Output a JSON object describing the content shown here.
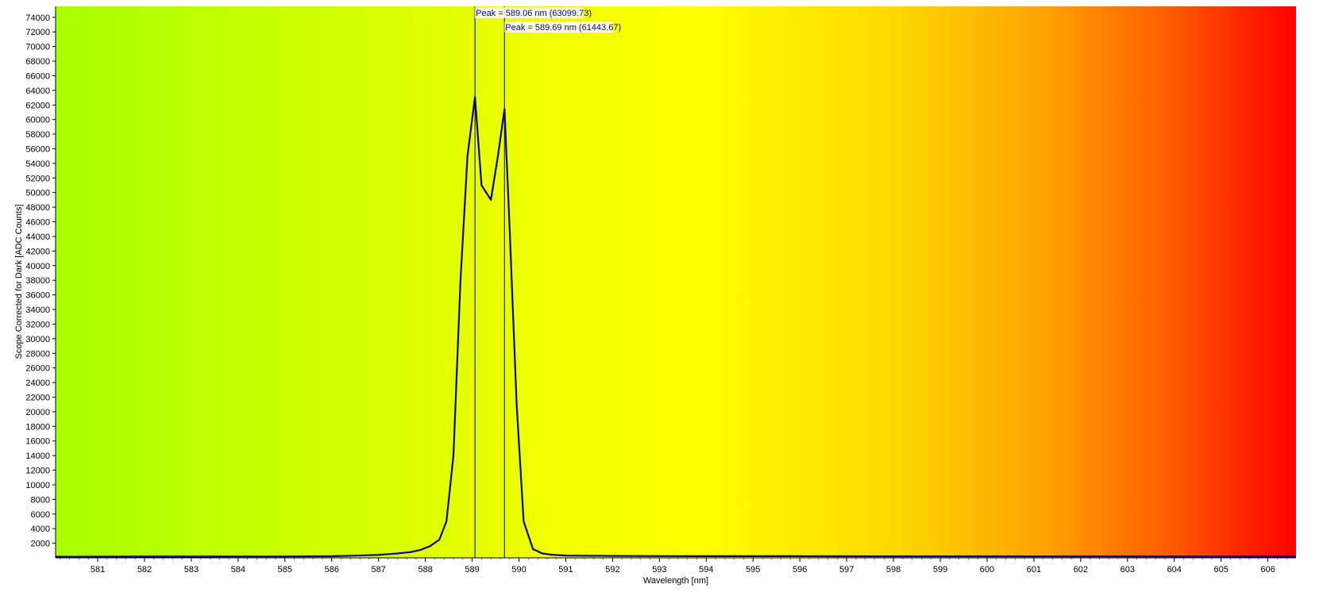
{
  "chart_data": {
    "type": "line",
    "xlabel": "Wavelength [nm]",
    "ylabel": "Scope Corrected for Dark [ADC Counts]",
    "xlim": [
      580.1,
      606.6
    ],
    "ylim": [
      0,
      75500
    ],
    "x_ticks": [
      581,
      582,
      583,
      584,
      585,
      586,
      587,
      588,
      589,
      590,
      591,
      592,
      593,
      594,
      595,
      596,
      597,
      598,
      599,
      600,
      601,
      602,
      603,
      604,
      605,
      606
    ],
    "y_ticks": [
      2000,
      4000,
      6000,
      8000,
      10000,
      12000,
      14000,
      16000,
      18000,
      20000,
      22000,
      24000,
      26000,
      28000,
      30000,
      32000,
      34000,
      36000,
      38000,
      40000,
      42000,
      44000,
      46000,
      48000,
      50000,
      52000,
      54000,
      56000,
      58000,
      60000,
      62000,
      64000,
      66000,
      68000,
      70000,
      72000,
      74000
    ],
    "grid": false,
    "legend": "none",
    "background": "spectral gradient",
    "background_colors": [
      "#a8ff00",
      "#ccff00",
      "#ffff00",
      "#ffd700",
      "#ff9a00",
      "#ff3a00",
      "#ff0000"
    ],
    "line_color": "#0a0a8a",
    "series": [
      {
        "x": [
          580.1,
          580.5,
          581.0,
          582.0,
          583.0,
          584.0,
          585.0,
          586.0,
          586.5,
          587.0,
          587.4,
          587.7,
          587.9,
          588.1,
          588.3,
          588.45,
          588.6,
          588.75,
          588.9,
          589.06,
          589.2,
          589.4,
          589.55,
          589.69,
          589.8,
          589.95,
          590.1,
          590.3,
          590.5,
          590.7,
          591.0,
          592.0,
          593.0,
          594.0,
          595.0,
          596.0,
          597.0,
          598.0,
          599.0,
          600.0,
          601.0,
          602.0,
          603.0,
          604.0,
          605.0,
          606.0,
          606.6
        ],
        "y": [
          150,
          150,
          160,
          170,
          170,
          180,
          190,
          220,
          300,
          400,
          600,
          800,
          1100,
          1600,
          2500,
          5000,
          14000,
          38000,
          55000,
          63099.73,
          51000,
          49000,
          55000,
          61443.67,
          45000,
          21000,
          5000,
          1200,
          600,
          420,
          320,
          260,
          240,
          230,
          230,
          230,
          220,
          210,
          210,
          210,
          200,
          200,
          200,
          190,
          190,
          180,
          180
        ]
      }
    ],
    "annotations": [
      {
        "text": "Peak = 589.06 nm (63099.73)",
        "x": 589.06
      },
      {
        "text": "Peak = 589.69 nm (61443.67)",
        "x": 589.69
      }
    ]
  }
}
